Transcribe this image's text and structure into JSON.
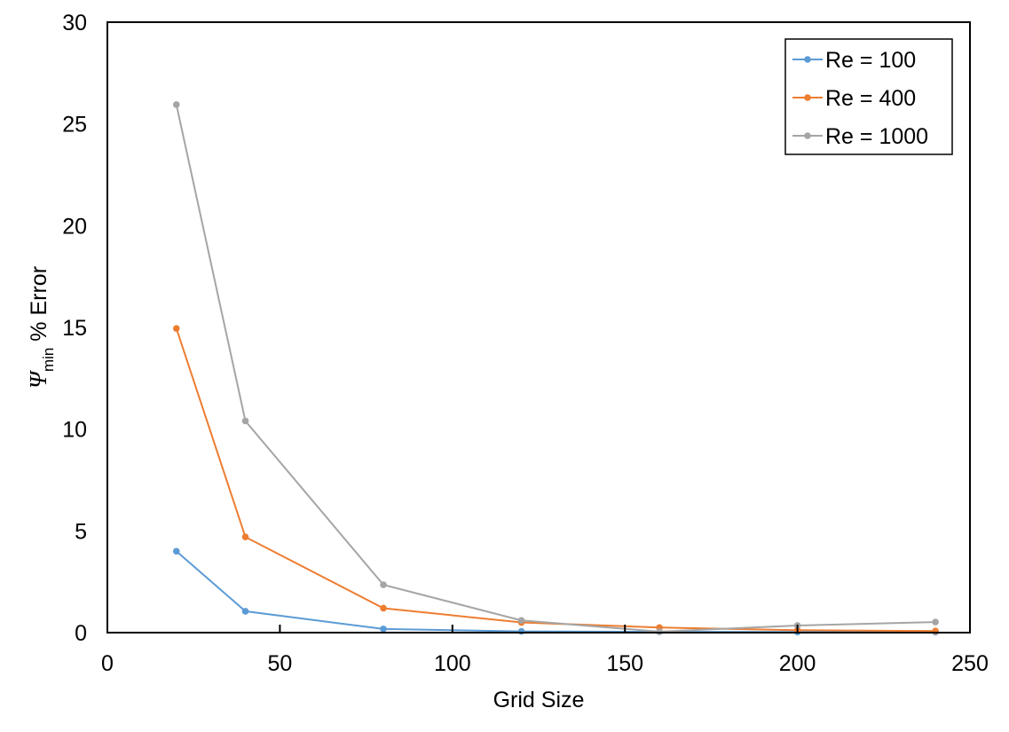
{
  "chart_data": {
    "type": "line",
    "xlabel": "Grid Size",
    "ylabel": {
      "symbol": "Ψ",
      "subscript": "min",
      "suffix": " % Error"
    },
    "xlim": [
      0,
      250
    ],
    "ylim": [
      0,
      30
    ],
    "xticks": [
      0,
      50,
      100,
      150,
      200,
      250
    ],
    "yticks": [
      0,
      5,
      10,
      15,
      20,
      25,
      30
    ],
    "x": [
      20,
      40,
      80,
      120,
      160,
      200,
      240
    ],
    "grid": false,
    "legend_position": "top-right",
    "series": [
      {
        "name": "Re = 100",
        "color": "#5B9BD5",
        "values": [
          4.0,
          1.05,
          0.18,
          0.06,
          0.04,
          0.03,
          0.03
        ]
      },
      {
        "name": "Re = 400",
        "color": "#ED7D31",
        "values": [
          14.95,
          4.7,
          1.2,
          0.5,
          0.25,
          0.12,
          0.08
        ]
      },
      {
        "name": "Re = 1000",
        "color": "#A5A5A5",
        "values": [
          25.95,
          10.4,
          2.35,
          0.6,
          0.05,
          0.35,
          0.52
        ]
      }
    ]
  }
}
